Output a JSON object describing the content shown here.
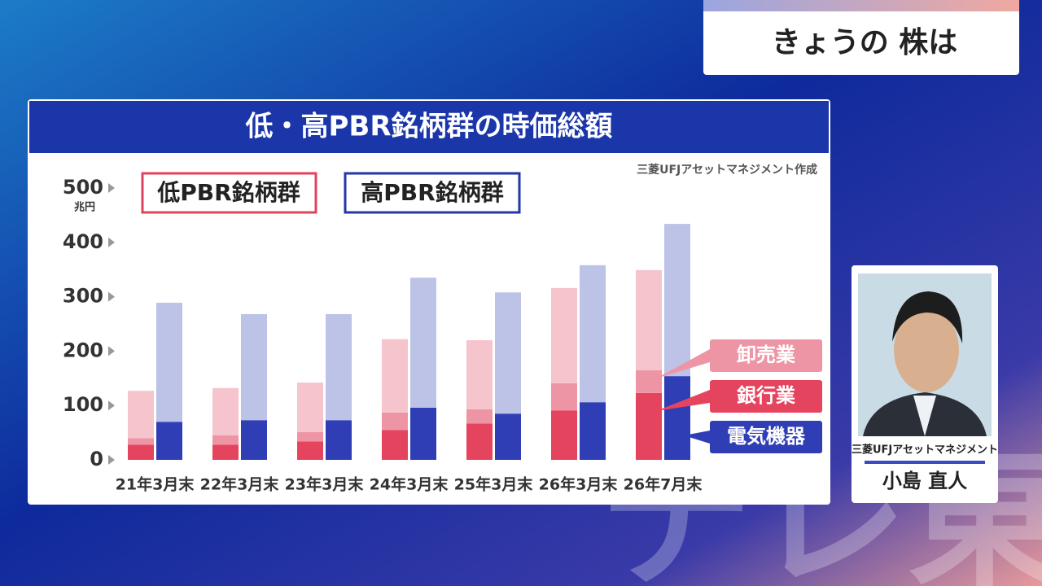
{
  "header": {
    "title": "きょうの 株は"
  },
  "watermark": "テレ東",
  "person": {
    "company": "三菱UFJアセットマネジメント",
    "name": "小島 直人"
  },
  "chart_data": {
    "type": "grouped-stacked-bar",
    "title": "低・高PBR銘柄群の時価総額",
    "source": "三菱UFJアセットマネジメント作成",
    "unit": "兆円",
    "categories": [
      "21年3月末",
      "22年3月末",
      "23年3月末",
      "24年3月末",
      "25年3月末",
      "26年3月末",
      "26年7月末"
    ],
    "groups": [
      {
        "name": "低PBR銘柄群",
        "color": "#e0435e",
        "segments": [
          {
            "name": "銀行業",
            "color": "#e5445e",
            "values": [
              28,
              28,
              34,
              55,
              67,
              91,
              123
            ]
          },
          {
            "name": "卸売業",
            "color": "#ee95a5",
            "values": [
              12,
              17,
              17,
              32,
              26,
              50,
              42
            ]
          },
          {
            "color": "#f5c4cd",
            "values": [
              87,
              87,
              91,
              135,
              127,
              175,
              184
            ]
          }
        ]
      },
      {
        "name": "高PBR銘柄群",
        "color": "#2536a6",
        "segments": [
          {
            "name": "電気機器",
            "color": "#2f3eb5",
            "values": [
              70,
              73,
              73,
              96,
              85,
              106,
              154
            ]
          },
          {
            "color": "#bcc3e6",
            "values": [
              219,
              195,
              195,
              239,
              223,
              252,
              280
            ]
          }
        ]
      }
    ],
    "ylim": [
      0,
      500
    ],
    "yticks": [
      0,
      100,
      200,
      300,
      400,
      500
    ]
  }
}
